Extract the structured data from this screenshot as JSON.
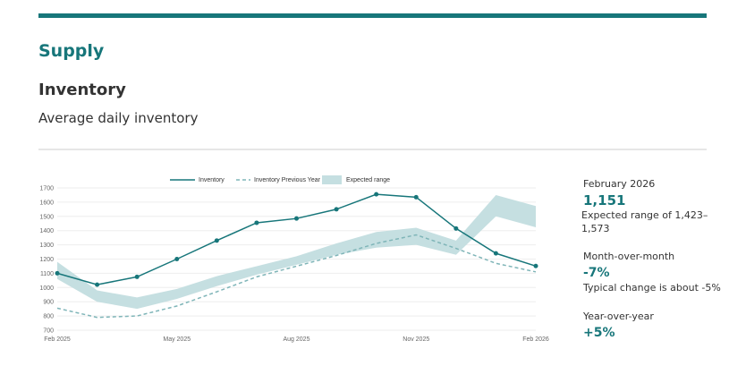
{
  "header": {
    "section": "Supply",
    "title": "Inventory",
    "subtitle": "Average daily inventory"
  },
  "chart_data": {
    "type": "line",
    "categories": [
      "Feb 2025",
      null,
      null,
      "May 2025",
      null,
      null,
      "Aug 2025",
      null,
      null,
      "Nov 2025",
      null,
      null,
      "Feb 2026"
    ],
    "series": [
      {
        "name": "Inventory",
        "color": "#17767a",
        "values": [
          1100,
          1020,
          1075,
          1200,
          1330,
          1455,
          1485,
          1550,
          1655,
          1635,
          1415,
          1240,
          1151
        ]
      },
      {
        "name": "Inventory Previous Year",
        "color": "#7fb5b8",
        "dashed": true,
        "values": [
          855,
          790,
          800,
          870,
          970,
          1075,
          1150,
          1225,
          1310,
          1370,
          1275,
          1170,
          1110
        ]
      }
    ],
    "range": {
      "name": "Expected range",
      "color": "#c5dfe1",
      "low": [
        1060,
        900,
        850,
        920,
        1010,
        1090,
        1160,
        1230,
        1280,
        1300,
        1230,
        1500,
        1423
      ],
      "high": [
        1180,
        980,
        930,
        990,
        1080,
        1150,
        1220,
        1310,
        1390,
        1420,
        1330,
        1650,
        1573
      ]
    },
    "ylim": [
      700,
      1700
    ],
    "yticks": [
      700,
      800,
      900,
      1000,
      1100,
      1200,
      1300,
      1400,
      1500,
      1600,
      1700
    ],
    "grid": true,
    "legend": "top"
  },
  "stats": {
    "period": "February 2026",
    "value": "1,151",
    "range_text": "Expected range of 1,423–1,573",
    "mom_label": "Month-over-month",
    "mom_value": "-7%",
    "mom_note": "Typical change is about -5%",
    "yoy_label": "Year-over-year",
    "yoy_value": "+5%"
  }
}
